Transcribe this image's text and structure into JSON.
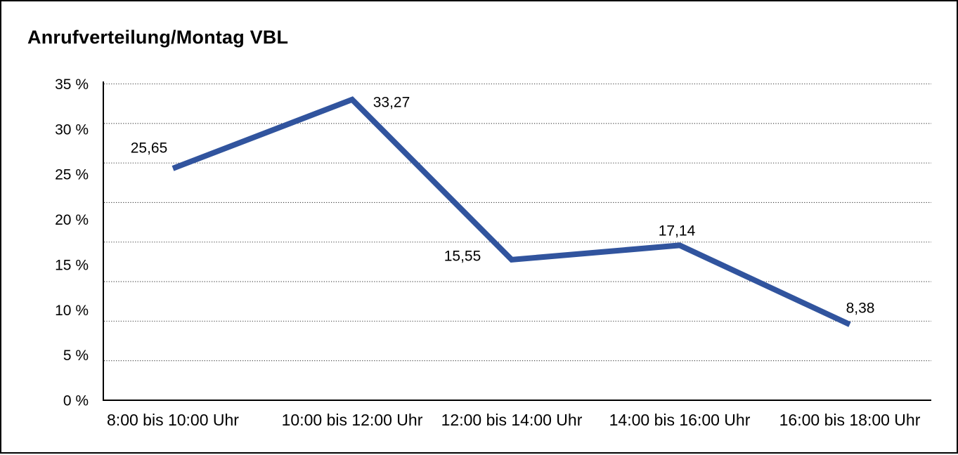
{
  "frame": {
    "background": "#ffffff",
    "border_color": "#000000"
  },
  "chart_data": {
    "type": "line",
    "title": "Anrufverteilung/Montag VBL",
    "categories": [
      "8:00 bis 10:00 Uhr",
      "10:00 bis 12:00 Uhr",
      "12:00 bis 14:00 Uhr",
      "14:00 bis 16:00 Uhr",
      "16:00 bis 18:00 Uhr"
    ],
    "values": [
      25.65,
      33.27,
      15.55,
      17.14,
      8.38
    ],
    "value_labels": [
      "25,65",
      "33,27",
      "15,55",
      "17,14",
      "8,38"
    ],
    "xlabel": "",
    "ylabel": "",
    "ylim": [
      0,
      35
    ],
    "y_tick_step": 5,
    "y_tick_labels": [
      "0 %",
      "5 %",
      "10 %",
      "15 %",
      "20 %",
      "25 %",
      "30 %",
      "35 %"
    ],
    "y_tick_values": [
      0,
      5,
      10,
      15,
      20,
      25,
      30,
      35
    ],
    "grid": true,
    "grid_divisions": 8,
    "grid_style": "dotted",
    "legend_position": "none",
    "line_color": "#31549e",
    "axis_color": "#000000",
    "grid_color": "#3a3a3a",
    "text_color": "#000000"
  }
}
